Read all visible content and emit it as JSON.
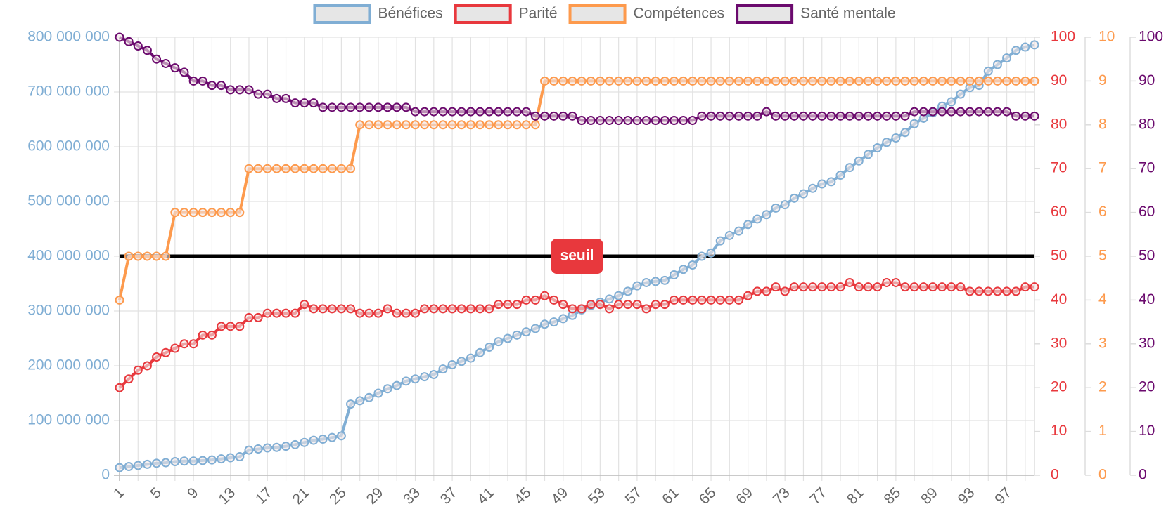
{
  "chart_data": {
    "type": "line",
    "categories": [
      "1",
      null,
      null,
      null,
      "5",
      null,
      null,
      null,
      "9",
      null,
      null,
      null,
      "13",
      null,
      null,
      null,
      "17",
      null,
      null,
      null,
      "21",
      null,
      null,
      null,
      "25",
      null,
      null,
      null,
      "29",
      null,
      null,
      null,
      "33",
      null,
      null,
      null,
      "37",
      null,
      null,
      null,
      "41",
      null,
      null,
      null,
      "45",
      null,
      null,
      null,
      "49",
      null,
      null,
      null,
      "53",
      null,
      null,
      null,
      "57",
      null,
      null,
      null,
      "61",
      null,
      null,
      null,
      "65",
      null,
      null,
      null,
      "69",
      null,
      null,
      null,
      "73",
      null,
      null,
      null,
      "77",
      null,
      null,
      null,
      "81",
      null,
      null,
      null,
      "85",
      null,
      null,
      null,
      "89",
      null,
      null,
      null,
      "93",
      null,
      null,
      null,
      "97",
      null,
      null,
      null
    ],
    "series": [
      {
        "name": "Bénéfices",
        "color": "#80aed4",
        "values": [
          14000000,
          16000000,
          18000000,
          20000000,
          22000000,
          23000000,
          25000000,
          26000000,
          26000000,
          27000000,
          28000000,
          30000000,
          32000000,
          34000000,
          46000000,
          48000000,
          50000000,
          51000000,
          53000000,
          56000000,
          60000000,
          64000000,
          66000000,
          69000000,
          72000000,
          130000000,
          136000000,
          142000000,
          150000000,
          158000000,
          164000000,
          172000000,
          176000000,
          180000000,
          184000000,
          194000000,
          202000000,
          208000000,
          214000000,
          224000000,
          234000000,
          244000000,
          250000000,
          256000000,
          262000000,
          268000000,
          276000000,
          280000000,
          286000000,
          292000000,
          302000000,
          310000000,
          316000000,
          322000000,
          328000000,
          336000000,
          346000000,
          352000000,
          354000000,
          356000000,
          366000000,
          376000000,
          384000000,
          400000000,
          406000000,
          428000000,
          438000000,
          446000000,
          458000000,
          468000000,
          476000000,
          488000000,
          494000000,
          506000000,
          514000000,
          524000000,
          532000000,
          536000000,
          548000000,
          562000000,
          574000000,
          586000000,
          598000000,
          608000000,
          616000000,
          626000000,
          642000000,
          652000000,
          662000000,
          674000000,
          682000000,
          696000000,
          708000000,
          712000000,
          738000000,
          750000000,
          762000000,
          776000000,
          782000000,
          786000000
        ]
      },
      {
        "name": "Parité",
        "color": "#e8383d",
        "axis": "y2",
        "values": [
          20,
          22,
          24,
          25,
          27,
          28,
          29,
          30,
          30,
          32,
          32,
          34,
          34,
          34,
          36,
          36,
          37,
          37,
          37,
          37,
          39,
          38,
          38,
          38,
          38,
          38,
          37,
          37,
          37,
          38,
          37,
          37,
          37,
          38,
          38,
          38,
          38,
          38,
          38,
          38,
          38,
          39,
          39,
          39,
          40,
          40,
          41,
          40,
          39,
          38,
          38,
          39,
          39,
          38,
          39,
          39,
          39,
          38,
          39,
          39,
          40,
          40,
          40,
          40,
          40,
          40,
          40,
          40,
          41,
          42,
          42,
          43,
          42,
          43,
          43,
          43,
          43,
          43,
          43,
          44,
          43,
          43,
          43,
          44,
          44,
          43,
          43,
          43,
          43,
          43,
          43,
          43,
          42,
          42,
          42,
          42,
          42,
          42,
          43,
          43
        ]
      },
      {
        "name": "Compétences",
        "color": "#fd9a4d",
        "axis": "y3",
        "values": [
          4,
          5,
          5,
          5,
          5,
          5,
          6,
          6,
          6,
          6,
          6,
          6,
          6,
          6,
          7,
          7,
          7,
          7,
          7,
          7,
          7,
          7,
          7,
          7,
          7,
          7,
          8,
          8,
          8,
          8,
          8,
          8,
          8,
          8,
          8,
          8,
          8,
          8,
          8,
          8,
          8,
          8,
          8,
          8,
          8,
          8,
          9,
          9,
          9,
          9,
          9,
          9,
          9,
          9,
          9,
          9,
          9,
          9,
          9,
          9,
          9,
          9,
          9,
          9,
          9,
          9,
          9,
          9,
          9,
          9,
          9,
          9,
          9,
          9,
          9,
          9,
          9,
          9,
          9,
          9,
          9,
          9,
          9,
          9,
          9,
          9,
          9,
          9,
          9,
          9,
          9,
          9,
          9,
          9,
          9,
          9,
          9,
          9,
          9,
          9
        ]
      },
      {
        "name": "Santé mentale",
        "color": "#6b0a6e",
        "axis": "y4",
        "values": [
          100,
          99,
          98,
          97,
          95,
          94,
          93,
          92,
          90,
          90,
          89,
          89,
          88,
          88,
          88,
          87,
          87,
          86,
          86,
          85,
          85,
          85,
          84,
          84,
          84,
          84,
          84,
          84,
          84,
          84,
          84,
          84,
          83,
          83,
          83,
          83,
          83,
          83,
          83,
          83,
          83,
          83,
          83,
          83,
          83,
          82,
          82,
          82,
          82,
          82,
          81,
          81,
          81,
          81,
          81,
          81,
          81,
          81,
          81,
          81,
          81,
          81,
          81,
          82,
          82,
          82,
          82,
          82,
          82,
          82,
          83,
          82,
          82,
          82,
          82,
          82,
          82,
          82,
          82,
          82,
          82,
          82,
          82,
          82,
          82,
          82,
          83,
          83,
          83,
          83,
          83,
          83,
          83,
          83,
          83,
          83,
          83,
          82,
          82,
          82
        ]
      }
    ],
    "ylim": [
      0,
      800000000
    ],
    "yticks": [
      0,
      {
        "value": 100000000,
        "label": "100 000 000"
      },
      {
        "value": 200000000,
        "label": "200 000 000"
      },
      {
        "value": 300000000,
        "label": "300 000 000"
      },
      {
        "value": 400000000,
        "label": "400 000 000"
      },
      {
        "value": 500000000,
        "label": "500 000 000"
      },
      {
        "value": 600000000,
        "label": "600 000 000"
      },
      {
        "value": 700000000,
        "label": "700 000 000"
      },
      {
        "value": 800000000,
        "label": "800 000 000"
      }
    ],
    "y2lim": [
      0,
      100
    ],
    "y2ticks": [
      0,
      10,
      20,
      30,
      40,
      50,
      60,
      70,
      80,
      90,
      100
    ],
    "y3lim": [
      0,
      10
    ],
    "y3ticks": [
      0,
      1,
      2,
      3,
      4,
      5,
      6,
      7,
      8,
      9,
      10
    ],
    "y4lim": [
      0,
      100
    ],
    "y4ticks": [
      0,
      10,
      20,
      30,
      40,
      50,
      60,
      70,
      80,
      90,
      100
    ],
    "grid": true,
    "legend": "top",
    "annotations": [
      {
        "label": "seuil",
        "value": 400000000,
        "color": "#e8383d",
        "line_color": "#000000"
      }
    ]
  }
}
